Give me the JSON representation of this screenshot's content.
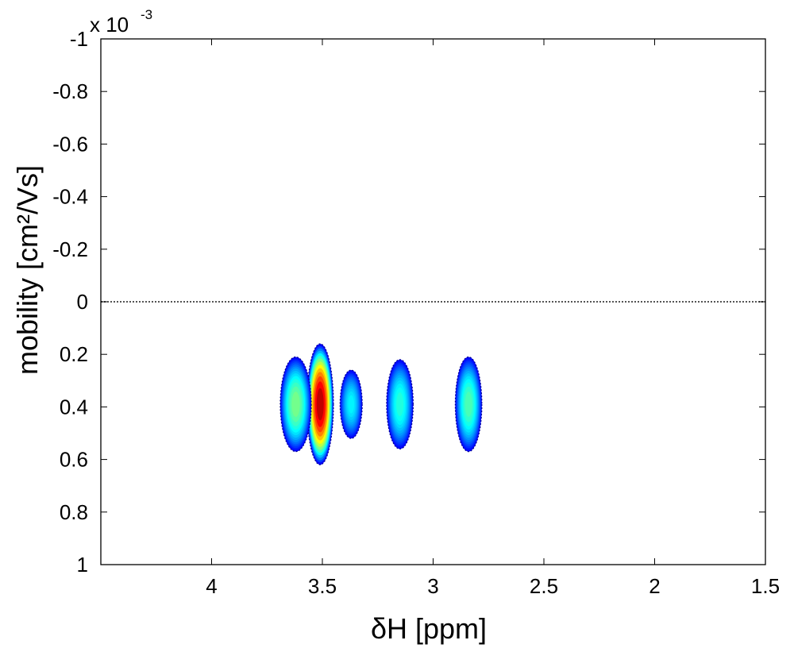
{
  "chart_data": {
    "type": "contour",
    "xlabel": "δH   [ppm]",
    "ylabel": "mobility   [cm²/Vs]",
    "y_exponent_base": "x 10",
    "y_exponent_power": "-3",
    "x_reversed": true,
    "y_reversed": true,
    "xlim": [
      4.5,
      1.5
    ],
    "ylim": [
      -1,
      1
    ],
    "x_ticks": [
      4,
      3.5,
      3,
      2.5,
      2,
      1.5
    ],
    "x_tick_labels": [
      "4",
      "3.5",
      "3",
      "2.5",
      "2",
      "1.5"
    ],
    "y_ticks": [
      -1,
      -0.8,
      -0.6,
      -0.4,
      -0.2,
      0,
      0.2,
      0.4,
      0.6,
      0.8,
      1
    ],
    "y_tick_labels": [
      "-1",
      "-0.8",
      "-0.6",
      "-0.4",
      "-0.2",
      "0",
      "0.2",
      "0.4",
      "0.6",
      "0.8",
      "1"
    ],
    "reference_line": {
      "y": 0,
      "style": "dotted",
      "color": "#555555"
    },
    "grid": false,
    "colormap": "jet",
    "peaks": [
      {
        "x": 3.51,
        "y": 0.39,
        "x_halfwidth": 0.06,
        "y_halfwidth": 0.23,
        "intensity": 1.0
      },
      {
        "x": 3.62,
        "y": 0.39,
        "x_halfwidth": 0.07,
        "y_halfwidth": 0.18,
        "intensity": 0.45
      },
      {
        "x": 3.37,
        "y": 0.39,
        "x_halfwidth": 0.05,
        "y_halfwidth": 0.13,
        "intensity": 0.3
      },
      {
        "x": 3.15,
        "y": 0.39,
        "x_halfwidth": 0.06,
        "y_halfwidth": 0.17,
        "intensity": 0.35
      },
      {
        "x": 2.84,
        "y": 0.39,
        "x_halfwidth": 0.06,
        "y_halfwidth": 0.18,
        "intensity": 0.4
      }
    ]
  }
}
